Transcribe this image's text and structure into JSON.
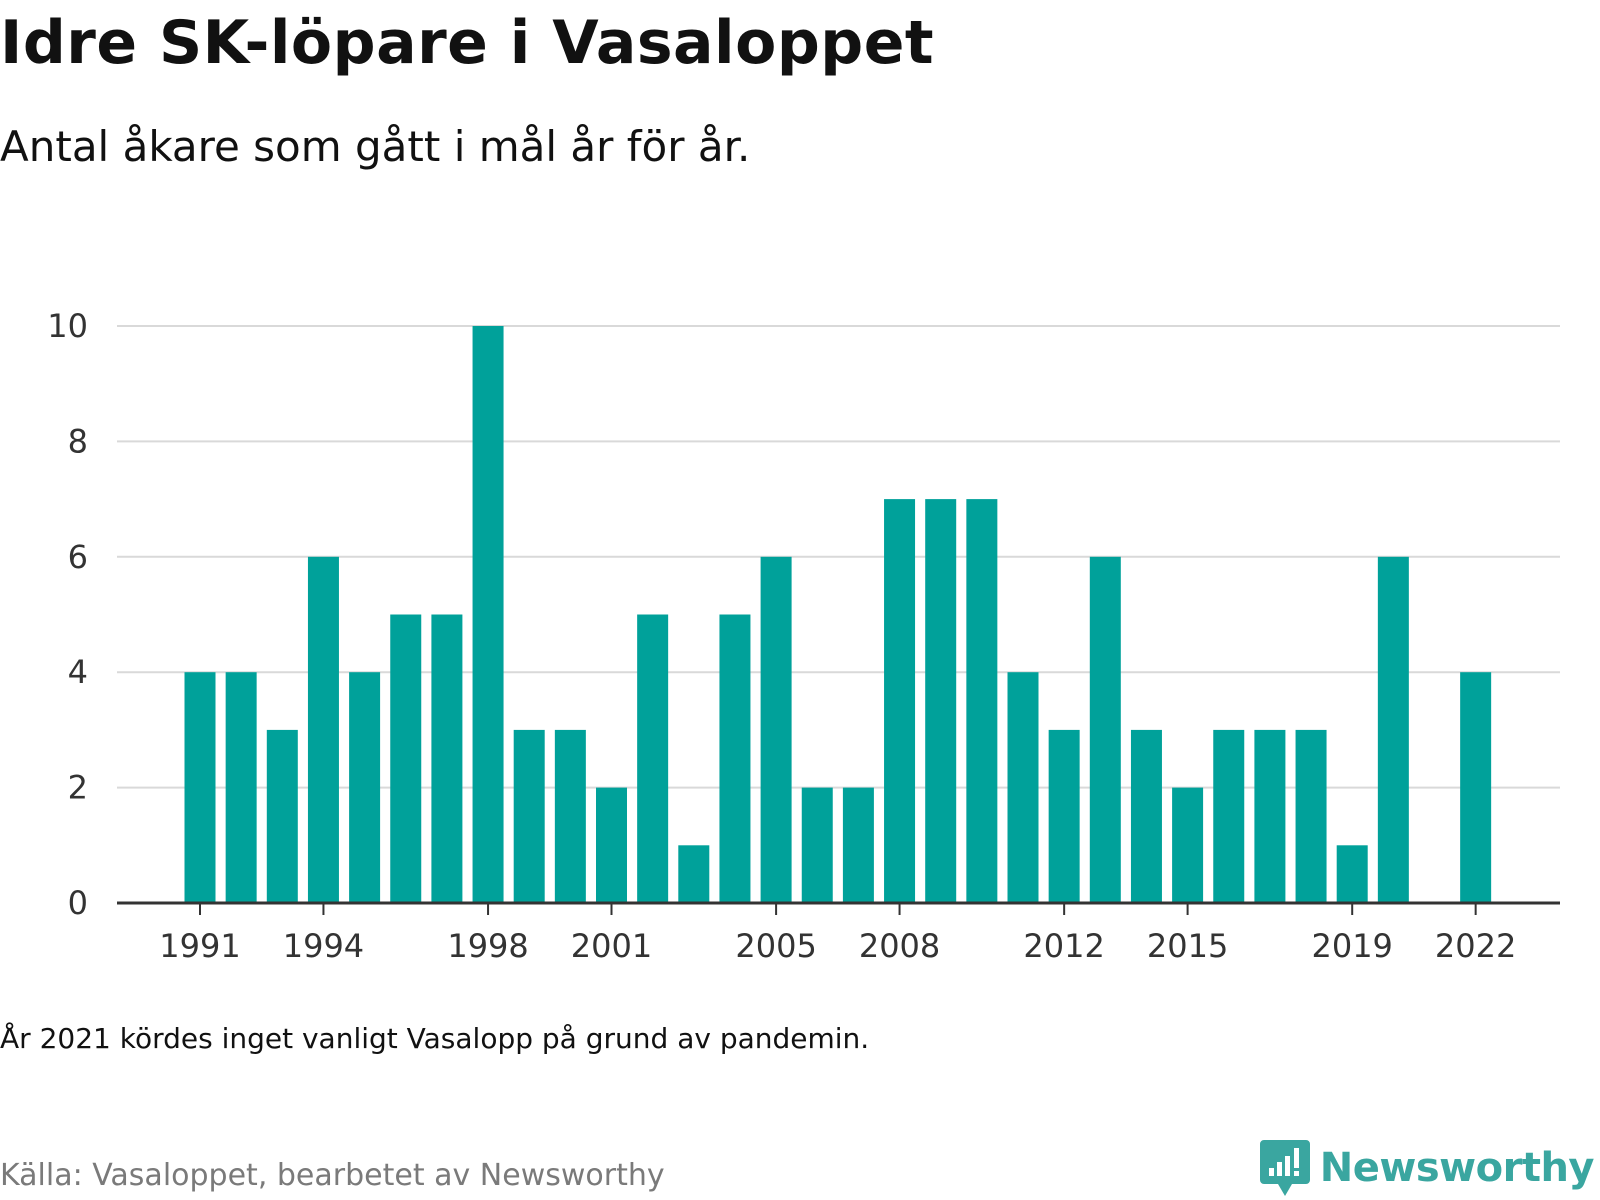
{
  "header": {
    "title": "Idre SK-löpare i Vasaloppet",
    "subtitle": "Antal åkare som gått i mål år för år."
  },
  "footer": {
    "note": "År 2021 kördes inget vanligt Vasalopp på grund av pandemin.",
    "source": "Källa: Vasaloppet, bearbetet av Newsworthy",
    "brand": "Newsworthy",
    "brand_icon": "bar-chart-speech-bubble-icon"
  },
  "colors": {
    "bar": "#00a19a",
    "gridline": "#d9d9d9",
    "axis": "#333333",
    "brand": "#3aa6a0"
  },
  "chart_data": {
    "type": "bar",
    "title": "Idre SK-löpare i Vasaloppet",
    "subtitle": "Antal åkare som gått i mål år för år.",
    "xlabel": "",
    "ylabel": "",
    "ylim": [
      0,
      10
    ],
    "yticks": [
      0,
      2,
      4,
      6,
      8,
      10
    ],
    "grid": true,
    "legend": "none",
    "x_tick_labels": [
      "1991",
      "1994",
      "1998",
      "2001",
      "2005",
      "2008",
      "2012",
      "2015",
      "2019",
      "2022"
    ],
    "categories": [
      1991,
      1992,
      1993,
      1994,
      1995,
      1996,
      1997,
      1998,
      1999,
      2000,
      2001,
      2002,
      2003,
      2004,
      2005,
      2006,
      2007,
      2008,
      2009,
      2010,
      2011,
      2012,
      2013,
      2014,
      2015,
      2016,
      2017,
      2018,
      2019,
      2020,
      2021,
      2022
    ],
    "values": [
      4,
      4,
      3,
      6,
      4,
      5,
      5,
      10,
      3,
      3,
      2,
      5,
      1,
      5,
      6,
      2,
      2,
      7,
      7,
      7,
      4,
      3,
      6,
      3,
      2,
      3,
      3,
      3,
      1,
      6,
      null,
      4
    ]
  }
}
